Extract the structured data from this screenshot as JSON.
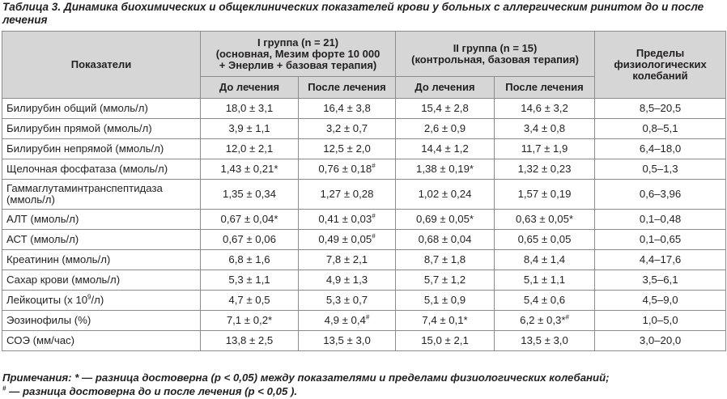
{
  "caption": "Таблица 3. Динамика биохимических и общеклинических показателей крови у больных с аллергическим ринитом до и после лечения",
  "header": {
    "indicator": "Показатели",
    "group1_line1": "I группа (n = 21)",
    "group1_line2": "(основная, Мезим форте 10 000",
    "group1_line3": "+ Энерлив + базовая терапия)",
    "group2_line1": "II группа (n = 15)",
    "group2_line2": "(контрольная, базовая терапия)",
    "limits_line1": "Пределы",
    "limits_line2": "физиологических",
    "limits_line3": "колебаний",
    "before": "До лечения",
    "after": "После лечения"
  },
  "rows": [
    {
      "name": "Билирубин общий (ммоль/л)",
      "g1b": "18,0 ± 3,1",
      "g1a": "16,4 ± 3,8",
      "g2b": "15,4 ± 2,8",
      "g2a": "14,6 ± 3,2",
      "lim": "8,5–20,5"
    },
    {
      "name": "Билирубин прямой (ммоль/л)",
      "g1b": "3,9 ± 1,1",
      "g1a": "3,2 ± 0,7",
      "g2b": "2,6 ± 0,9",
      "g2a": "3,4 ± 0,8",
      "lim": "0,8–5,1"
    },
    {
      "name": "Билирубин непрямой (ммоль/л)",
      "g1b": "12,0 ± 2,1",
      "g1a": "12,5 ± 2,0",
      "g2b": "14,4 ± 1,2",
      "g2a": "11,7 ± 1,9",
      "lim": "6,4–18,0"
    },
    {
      "name": "Щелочная фосфатаза (ммоль/л)",
      "g1b": "1,43 ± 0,21*",
      "g1a": "0,76 ± 0,18",
      "g1a_sup": "#",
      "g2b": "1,38 ± 0,19*",
      "g2a": "1,32 ± 0,23",
      "lim": "0,5–1,3"
    },
    {
      "name": "Гаммаглутаминтранспептидаза",
      "name2": "(ммоль/л)",
      "g1b": "1,35 ± 0,34",
      "g1a": "1,27 ± 0,28",
      "g2b": "1,02 ± 0,24",
      "g2a": "1,57 ± 0,19",
      "lim": "0,6–3,96"
    },
    {
      "name": "АЛТ (ммоль/л)",
      "g1b": "0,67 ± 0,04*",
      "g1a": "0,41 ± 0,03",
      "g1a_sup": "#",
      "g2b": "0,69 ± 0,05*",
      "g2a": "0,63 ± 0,05*",
      "lim": "0,1–0,48"
    },
    {
      "name": "АСТ (ммоль/л)",
      "g1b": "0,67 ± 0,06",
      "g1a": "0,49 ± 0,05",
      "g1a_sup": "#",
      "g2b": "0,68 ± 0,04",
      "g2a": "0,65 ± 0,05",
      "lim": "0,1–0,65"
    },
    {
      "name": "Креатинин (ммоль/л)",
      "g1b": "6,8 ± 1,6",
      "g1a": "7,8 ± 2,1",
      "g2b": "8,7 ± 1,8",
      "g2a": "8,4 ± 1,4",
      "lim": "4,4–17,6"
    },
    {
      "name": "Сахар крови (ммоль/л)",
      "g1b": "5,3 ± 1,1",
      "g1a": "4,9 ± 1,3",
      "g2b": "5,7 ± 1,2",
      "g2a": "5,1 ± 1,1",
      "lim": "3,5–6,1"
    },
    {
      "name": "Лейкоциты (х 10",
      "name_sup": "9",
      "name_tail": "/л)",
      "g1b": "4,7 ± 0,5",
      "g1a": "5,3 ± 0,7",
      "g2b": "5,1 ± 0,9",
      "g2a": "5,4 ± 0,6",
      "lim": "4,5–9,0"
    },
    {
      "name": "Эозинофилы (%)",
      "g1b": "7,1 ± 0,2*",
      "g1a": "4,9 ± 0,4",
      "g1a_sup": "#",
      "g2b": "7,4 ± 0,1*",
      "g2a": "6,2 ± 0,3*",
      "g2a_sup": "#",
      "lim": "1,0–5,0"
    },
    {
      "name": "СОЭ (мм/час)",
      "g1b": "13,8 ± 2,5",
      "g1a": "13,5 ± 3,0",
      "g2b": "15,0 ± 2,1",
      "g2a": "13,5 ± 3,0",
      "lim": "3,0–20,0"
    }
  ],
  "notes": {
    "line1": "Примечания: * — разница достоверна (р < 0,05) между показателями и пределами физиологических колебаний;",
    "line2_sup": "#",
    "line2": " — разница достоверна до и после лечения (р < 0,05 )."
  }
}
